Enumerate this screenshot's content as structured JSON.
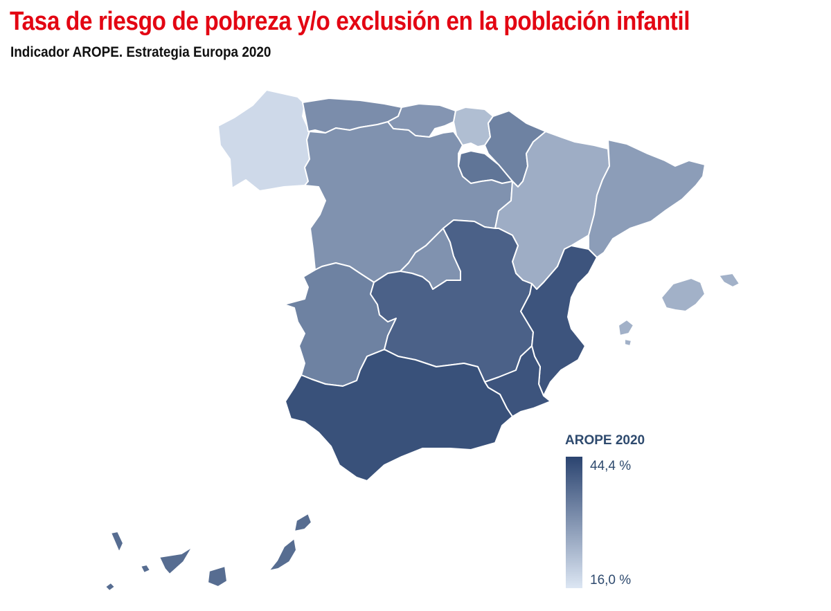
{
  "title": "Tasa de riesgo de pobreza y/o exclusión en la población infantil",
  "subtitle": "Indicador AROPE. Estrategia Europa 2020",
  "legend": {
    "title": "AROPE 2020",
    "max_label": "44,4 %",
    "min_label": "16,0 %",
    "max_value": 44.4,
    "min_value": 16.0,
    "color_max": "#2b4470",
    "color_min": "#dce6f3"
  },
  "regions": [
    {
      "id": "galicia",
      "level": 0.08
    },
    {
      "id": "asturias",
      "level": 0.55
    },
    {
      "id": "cantabria",
      "level": 0.5
    },
    {
      "id": "pais-vasco",
      "level": 0.25
    },
    {
      "id": "navarra",
      "level": 0.62
    },
    {
      "id": "la-rioja",
      "level": 0.7
    },
    {
      "id": "castilla-y-leon",
      "level": 0.52
    },
    {
      "id": "madrid",
      "level": 0.52
    },
    {
      "id": "aragon",
      "level": 0.35
    },
    {
      "id": "cataluna",
      "level": 0.45
    },
    {
      "id": "baleares",
      "level": 0.33
    },
    {
      "id": "extremadura",
      "level": 0.62
    },
    {
      "id": "castilla-la-mancha",
      "level": 0.82
    },
    {
      "id": "comunidad-valenciana",
      "level": 0.9
    },
    {
      "id": "murcia",
      "level": 0.9
    },
    {
      "id": "andalucia",
      "level": 0.92
    },
    {
      "id": "canarias",
      "level": 0.75
    }
  ]
}
